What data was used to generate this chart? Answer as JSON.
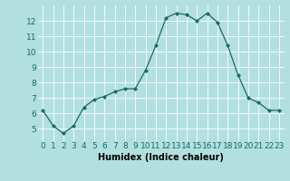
{
  "x": [
    0,
    1,
    2,
    3,
    4,
    5,
    6,
    7,
    8,
    9,
    10,
    11,
    12,
    13,
    14,
    15,
    16,
    17,
    18,
    19,
    20,
    21,
    22,
    23
  ],
  "y": [
    6.2,
    5.2,
    4.7,
    5.2,
    6.4,
    6.9,
    7.1,
    7.4,
    7.6,
    7.6,
    8.8,
    10.4,
    12.2,
    12.5,
    12.4,
    12.0,
    12.5,
    11.9,
    10.4,
    8.5,
    7.0,
    6.7,
    6.2,
    6.2
  ],
  "line_color": "#1a6b5e",
  "marker": "D",
  "marker_size": 2.0,
  "bg_color": "#b2e0e0",
  "grid_color": "#ffffff",
  "xlabel": "Humidex (Indice chaleur)",
  "ylim": [
    4.2,
    13.0
  ],
  "xlim": [
    -0.5,
    23.5
  ],
  "yticks": [
    5,
    6,
    7,
    8,
    9,
    10,
    11,
    12
  ],
  "xticks": [
    0,
    1,
    2,
    3,
    4,
    5,
    6,
    7,
    8,
    9,
    10,
    11,
    12,
    13,
    14,
    15,
    16,
    17,
    18,
    19,
    20,
    21,
    22,
    23
  ],
  "xlabel_fontsize": 7,
  "tick_fontsize": 6.5,
  "line_width": 0.9
}
